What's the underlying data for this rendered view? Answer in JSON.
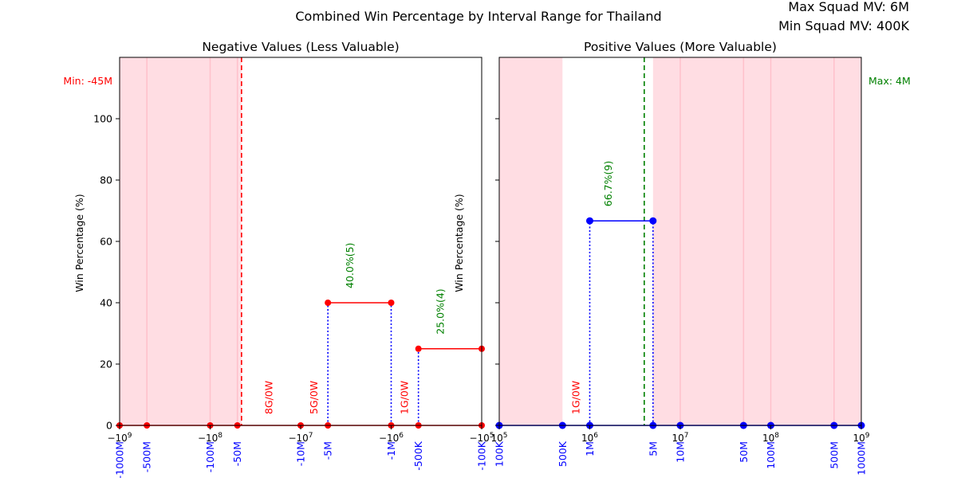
{
  "figure": {
    "suptitle": "Combined Win Percentage by Interval Range for Thailand",
    "squad_mv_lines": [
      "Max Squad MV: 6M",
      "Min Squad MV: 400K"
    ]
  },
  "colors": {
    "shade": "#ffdde3",
    "shade_line": "#ffc0cb",
    "negative_series": "#ff0000",
    "positive_series": "#0000ff",
    "annotation_green": "#008000",
    "stem": "#0000ff",
    "min_line": "#ff0000",
    "max_line": "#008000"
  },
  "chart_data": [
    {
      "type": "line",
      "title": "Negative Values (Less Valuable)",
      "ylabel": "Win Percentage (%)",
      "xscale": "symlog",
      "xlim": [
        -1000000000,
        -100000
      ],
      "ylim": [
        0,
        120
      ],
      "yticks": [
        0,
        20,
        40,
        60,
        80,
        100
      ],
      "xticks": [
        {
          "value": -1000000000,
          "label": "−10^9"
        },
        {
          "value": -100000000,
          "label": "−10^8"
        },
        {
          "value": -10000000,
          "label": "−10^7"
        },
        {
          "value": -1000000,
          "label": "−10^6"
        },
        {
          "value": -100000,
          "label": "−10^5"
        }
      ],
      "interval_labels": [
        {
          "value": -1000000000,
          "label": "-1000M"
        },
        {
          "value": -500000000,
          "label": "-500M"
        },
        {
          "value": -100000000,
          "label": "-100M"
        },
        {
          "value": -50000000,
          "label": "-50M"
        },
        {
          "value": -10000000,
          "label": "-10M"
        },
        {
          "value": -5000000,
          "label": "-5M"
        },
        {
          "value": -1000000,
          "label": "-1M"
        },
        {
          "value": -500000,
          "label": "-500K"
        },
        {
          "value": -100000,
          "label": "-100K"
        }
      ],
      "shaded_ranges": [
        [
          -1000000000,
          -45000000
        ]
      ],
      "reference_line": {
        "value": -45000000,
        "label": "Min: -45M"
      },
      "series": [
        {
          "points": [
            [
              -1000000000,
              0
            ],
            [
              -500000000,
              0
            ],
            [
              -100000000,
              0
            ],
            [
              -50000000,
              0
            ],
            [
              -10000000,
              0
            ],
            [
              -5000000,
              0
            ],
            [
              -1000000,
              0
            ],
            [
              -500000,
              0
            ],
            [
              -100000,
              0
            ]
          ]
        },
        {
          "points": [
            [
              -5000000,
              40
            ],
            [
              -1000000,
              40
            ]
          ]
        },
        {
          "points": [
            [
              -500000,
              25
            ],
            [
              -100000,
              25
            ]
          ]
        }
      ],
      "stems": [
        {
          "x": -5000000,
          "y": 40
        },
        {
          "x": -1000000,
          "y": 40
        },
        {
          "x": -500000,
          "y": 25
        }
      ],
      "win_annotations": [
        {
          "x1": -5000000,
          "x2": -1000000,
          "y": 40,
          "text": "40.0%(5)"
        },
        {
          "x1": -500000,
          "x2": -100000,
          "y": 25,
          "text": "25.0%(4)"
        }
      ],
      "record_annotations": [
        {
          "x1": -50000000,
          "x2": -10000000,
          "text": "8G/0W"
        },
        {
          "x1": -10000000,
          "x2": -5000000,
          "text": "5G/0W"
        },
        {
          "x1": -1000000,
          "x2": -500000,
          "text": "1G/0W"
        }
      ]
    },
    {
      "type": "line",
      "title": "Positive Values (More Valuable)",
      "ylabel": "Win Percentage (%)",
      "xscale": "log",
      "xlim": [
        100000,
        1000000000
      ],
      "ylim": [
        0,
        120
      ],
      "yticks": [
        0,
        20,
        40,
        60,
        80,
        100
      ],
      "xticks": [
        {
          "value": 100000,
          "label": "10^5"
        },
        {
          "value": 1000000,
          "label": "10^6"
        },
        {
          "value": 10000000,
          "label": "10^7"
        },
        {
          "value": 100000000,
          "label": "10^8"
        },
        {
          "value": 1000000000,
          "label": "10^9"
        }
      ],
      "interval_labels": [
        {
          "value": 100000,
          "label": "100K"
        },
        {
          "value": 500000,
          "label": "500K"
        },
        {
          "value": 1000000,
          "label": "1M"
        },
        {
          "value": 5000000,
          "label": "5M"
        },
        {
          "value": 10000000,
          "label": "10M"
        },
        {
          "value": 50000000,
          "label": "50M"
        },
        {
          "value": 100000000,
          "label": "100M"
        },
        {
          "value": 500000000,
          "label": "500M"
        },
        {
          "value": 1000000000,
          "label": "1000M"
        }
      ],
      "shaded_ranges": [
        [
          100000,
          500000
        ],
        [
          5000000,
          1000000000
        ]
      ],
      "reference_line": {
        "value": 4000000,
        "label": "Max: 4M"
      },
      "series": [
        {
          "points": [
            [
              100000,
              0
            ],
            [
              500000,
              0
            ],
            [
              1000000,
              0
            ],
            [
              5000000,
              0
            ],
            [
              10000000,
              0
            ],
            [
              50000000,
              0
            ],
            [
              100000000,
              0
            ],
            [
              500000000,
              0
            ],
            [
              1000000000,
              0
            ]
          ]
        },
        {
          "points": [
            [
              1000000,
              66.7
            ],
            [
              5000000,
              66.7
            ]
          ]
        }
      ],
      "stems": [
        {
          "x": 1000000,
          "y": 66.7
        },
        {
          "x": 5000000,
          "y": 66.7
        }
      ],
      "win_annotations": [
        {
          "x1": 1000000,
          "x2": 5000000,
          "y": 66.7,
          "text": "66.7%(9)"
        }
      ],
      "record_annotations": [
        {
          "x1": 500000,
          "x2": 1000000,
          "text": "1G/0W"
        }
      ]
    }
  ]
}
